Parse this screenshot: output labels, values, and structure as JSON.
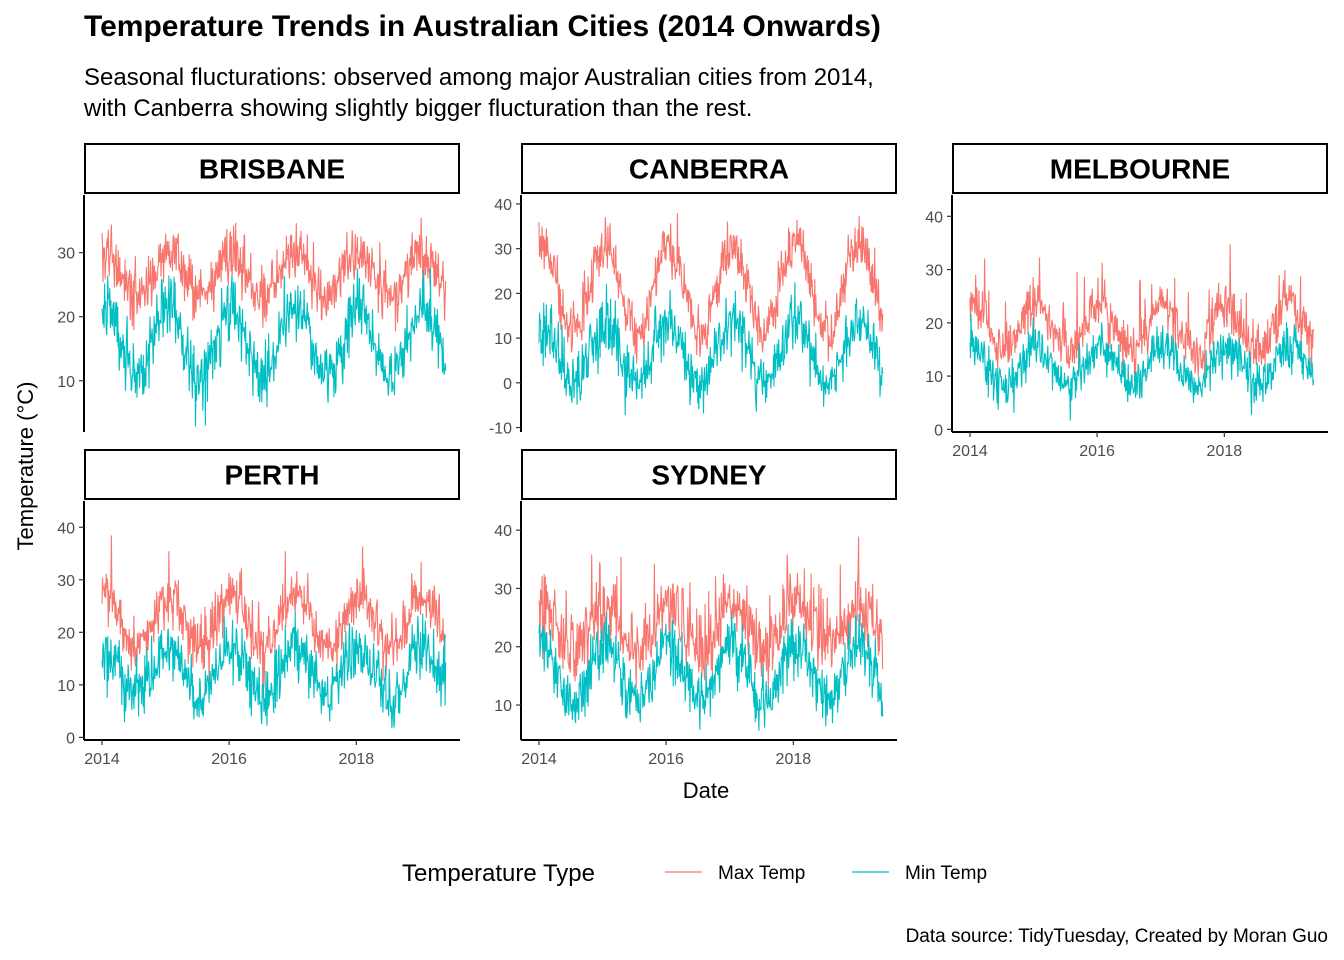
{
  "title": "Temperature Trends in Australian Cities (2014 Onwards)",
  "subtitle_lines": [
    "Seasonal flucturations: observed among major Australian cities from 2014,",
    "with Canberra showing slightly bigger flucturation than the rest."
  ],
  "caption": "Data source: TidyTuesday, Created by Moran Guo",
  "colors": {
    "max": "#f8766d",
    "min": "#00bfc4"
  },
  "chart_data": {
    "type": "line",
    "xlabel": "Date",
    "ylabel": "Temperature (°C)",
    "legend": {
      "title": "Temperature Type",
      "position": "bottom",
      "entries": [
        "Max Temp",
        "Min Temp"
      ]
    },
    "x_range": [
      "2014-01-01",
      "2019-05-31"
    ],
    "x_ticks": [
      "2014",
      "2016",
      "2018"
    ],
    "grid": false,
    "facets": [
      {
        "city": "BRISBANE",
        "ylim": [
          2,
          39
        ],
        "y_ticks": [
          10,
          20,
          30
        ],
        "x_axis_shown": false,
        "series": [
          {
            "name": "Max Temp",
            "mean": 26.5,
            "amplitude": 3.5,
            "noise": 2.2,
            "spike_prob": 0.04,
            "spike_size": 6
          },
          {
            "name": "Min Temp",
            "mean": 16.0,
            "amplitude": 5.5,
            "noise": 2.5,
            "spike_prob": 0.03,
            "spike_size": 5
          }
        ]
      },
      {
        "city": "CANBERRA",
        "ylim": [
          -11,
          42
        ],
        "y_ticks": [
          -10,
          0,
          10,
          20,
          30,
          40
        ],
        "x_axis_shown": false,
        "series": [
          {
            "name": "Max Temp",
            "mean": 21.0,
            "amplitude": 10.0,
            "noise": 3.0,
            "spike_prob": 0.05,
            "spike_size": 6
          },
          {
            "name": "Min Temp",
            "mean": 7.0,
            "amplitude": 7.0,
            "noise": 3.2,
            "spike_prob": 0.03,
            "spike_size": 5
          }
        ]
      },
      {
        "city": "MELBOURNE",
        "ylim": [
          -0.5,
          44
        ],
        "y_ticks": [
          0,
          10,
          20,
          30,
          40
        ],
        "x_axis_shown": true,
        "series": [
          {
            "name": "Max Temp",
            "mean": 19.0,
            "amplitude": 4.5,
            "noise": 2.2,
            "spike_prob": 0.05,
            "spike_size": 12
          },
          {
            "name": "Min Temp",
            "mean": 12.0,
            "amplitude": 3.5,
            "noise": 2.0,
            "spike_prob": 0.03,
            "spike_size": 5
          }
        ]
      },
      {
        "city": "PERTH",
        "ylim": [
          -0.5,
          45
        ],
        "y_ticks": [
          0,
          10,
          20,
          30,
          40
        ],
        "x_axis_shown": true,
        "series": [
          {
            "name": "Max Temp",
            "mean": 22.0,
            "amplitude": 5.0,
            "noise": 2.5,
            "spike_prob": 0.05,
            "spike_size": 8
          },
          {
            "name": "Min Temp",
            "mean": 12.5,
            "amplitude": 4.5,
            "noise": 3.0,
            "spike_prob": 0.04,
            "spike_size": 5
          }
        ]
      },
      {
        "city": "SYDNEY",
        "ylim": [
          4,
          45
        ],
        "y_ticks": [
          10,
          20,
          30,
          40
        ],
        "x_axis_shown": true,
        "series": [
          {
            "name": "Max Temp",
            "mean": 23.5,
            "amplitude": 4.0,
            "noise": 3.0,
            "spike_prob": 0.06,
            "spike_size": 10
          },
          {
            "name": "Min Temp",
            "mean": 15.5,
            "amplitude": 5.0,
            "noise": 2.5,
            "spike_prob": 0.03,
            "spike_size": 4
          }
        ]
      }
    ]
  }
}
